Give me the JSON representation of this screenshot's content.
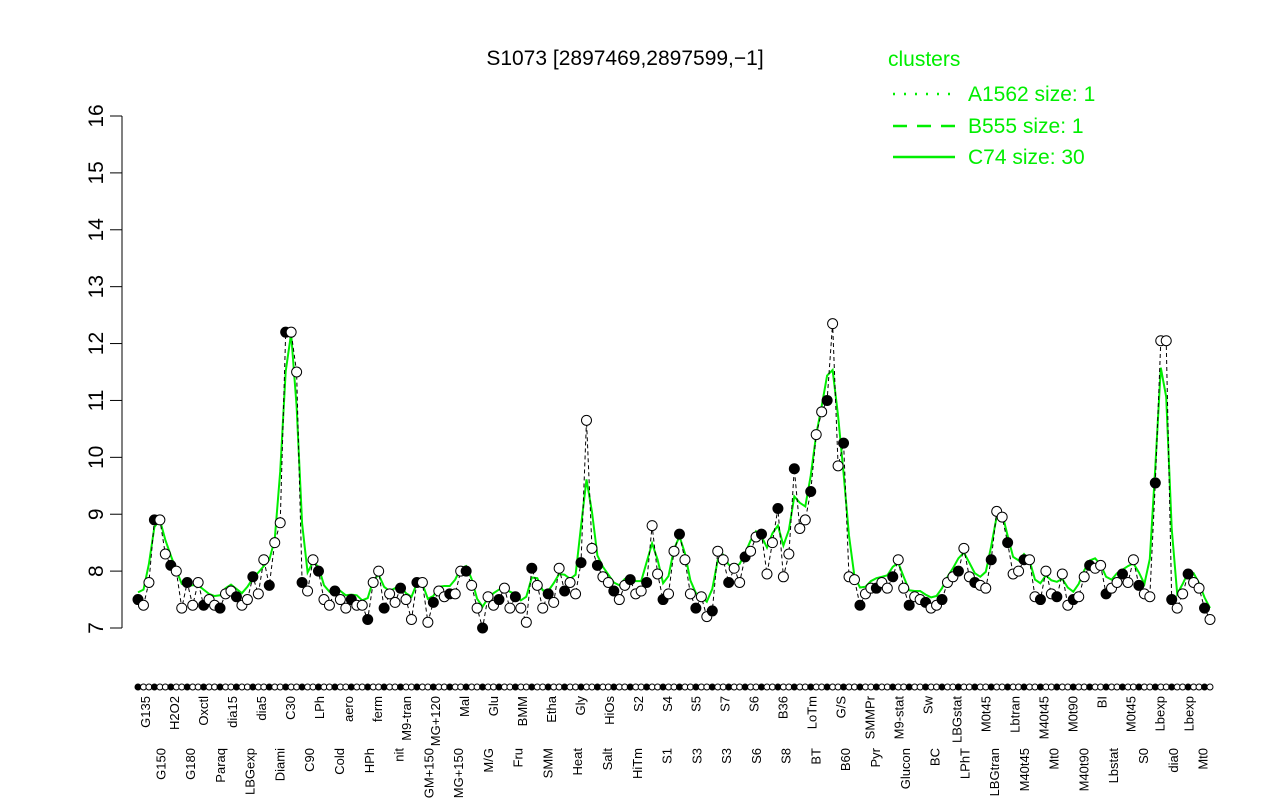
{
  "chart_data": {
    "type": "scatter",
    "title": "S1073 [2897469,2897599,−1]",
    "xlabel": "",
    "ylabel": "",
    "ylim": [
      7,
      16
    ],
    "yticks": [
      "7",
      "8",
      "9",
      "10",
      "11",
      "12",
      "13",
      "14",
      "15",
      "16"
    ],
    "legend": {
      "title": "clusters",
      "placement": "top-right",
      "entries": [
        {
          "label": "A1562 size: 1",
          "style": "dotted"
        },
        {
          "label": "B555 size: 1",
          "style": "dashed"
        },
        {
          "label": "C74 size: 30",
          "style": "solid"
        }
      ]
    },
    "colors": {
      "cluster": "#00ee00",
      "points": "#000000"
    },
    "values": [
      7.5,
      7.4,
      7.8,
      8.9,
      8.9,
      8.3,
      8.1,
      8.0,
      7.35,
      7.8,
      7.4,
      7.8,
      7.4,
      7.5,
      7.4,
      7.35,
      7.6,
      7.65,
      7.55,
      7.4,
      7.5,
      7.9,
      7.6,
      8.2,
      7.75,
      8.5,
      8.85,
      12.2,
      12.2,
      11.5,
      7.8,
      7.65,
      8.2,
      8.0,
      7.5,
      7.4,
      7.65,
      7.5,
      7.35,
      7.5,
      7.4,
      7.4,
      7.15,
      7.8,
      8.0,
      7.35,
      7.6,
      7.45,
      7.7,
      7.5,
      7.15,
      7.8,
      7.8,
      7.1,
      7.45,
      7.65,
      7.55,
      7.6,
      7.6,
      8.0,
      8.0,
      7.75,
      7.35,
      7.0,
      7.55,
      7.4,
      7.5,
      7.7,
      7.35,
      7.55,
      7.35,
      7.1,
      8.05,
      7.75,
      7.35,
      7.6,
      7.45,
      8.05,
      7.65,
      7.8,
      7.6,
      8.15,
      10.65,
      8.4,
      8.1,
      7.9,
      7.8,
      7.65,
      7.5,
      7.75,
      7.85,
      7.6,
      7.65,
      7.8,
      8.8,
      7.95,
      7.5,
      7.6,
      8.35,
      8.65,
      8.2,
      7.6,
      7.35,
      7.55,
      7.2,
      7.3,
      8.35,
      8.2,
      7.8,
      8.05,
      7.8,
      8.25,
      8.35,
      8.6,
      8.65,
      7.95,
      8.5,
      9.1,
      7.9,
      8.3,
      9.8,
      8.75,
      8.9,
      9.4,
      10.4,
      10.8,
      11.0,
      12.35,
      9.85,
      10.25,
      7.9,
      7.85,
      7.4,
      7.6,
      7.7,
      7.7,
      7.8,
      7.7,
      7.9,
      8.2,
      7.7,
      7.4,
      7.55,
      7.5,
      7.45,
      7.35,
      7.4,
      7.5,
      7.8,
      7.9,
      8.0,
      8.4,
      7.9,
      7.8,
      7.75,
      7.7,
      8.2,
      9.05,
      8.95,
      8.5,
      7.95,
      8.0,
      8.2,
      8.2,
      7.55,
      7.5,
      8.0,
      7.6,
      7.55,
      7.95,
      7.4,
      7.5,
      7.55,
      7.9,
      8.1,
      8.05,
      8.1,
      7.6,
      7.7,
      7.8,
      7.95,
      7.8,
      8.2,
      7.75,
      7.6,
      7.55,
      9.55,
      12.05,
      12.05,
      7.5,
      7.35,
      7.6,
      7.95,
      7.8,
      7.7,
      7.35,
      7.15
    ],
    "x_labels_lower": [
      "G150",
      "G180",
      "Paraq",
      "LBGexp",
      "Diami",
      "C90",
      "Cold",
      "HPh",
      "nit",
      "GM+150",
      "MG+150",
      "M/G",
      "Fru",
      "SMM",
      "Heat",
      "Salt",
      "HiTm",
      "S1",
      "S3",
      "S3",
      "S6",
      "S8",
      "BT",
      "B60",
      "Pyr",
      "Glucon",
      "BC",
      "LPhT",
      "LBGtran",
      "M40t45",
      "Mt0",
      "M40t90",
      "Lbstat",
      "S0",
      "dia0",
      "Mt0"
    ],
    "x_labels_upper": [
      "G135",
      "H2O2",
      "Oxctl",
      "dia15",
      "dia5",
      "C30",
      "LPh",
      "aero",
      "ferm",
      "M9-tran",
      "MG+120",
      "Mal",
      "Glu",
      "BMM",
      "Etha",
      "Gly",
      "HiOs",
      "S2",
      "S4",
      "S5",
      "S7",
      "S6",
      "B36",
      "LoTm",
      "G/S",
      "SMMPr",
      "M9-stat",
      "Sw",
      "LBGstat",
      "M0t45",
      "Lbtran",
      "M40t45",
      "M0t90",
      "BI",
      "M0t45",
      "Lbexp",
      "Lbexp"
    ]
  }
}
